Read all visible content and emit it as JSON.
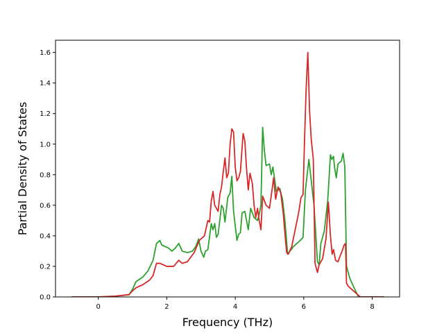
{
  "chart_data": {
    "type": "line",
    "title": "",
    "xlabel": "Frequency (THz)",
    "ylabel": "Partial Density of States",
    "xlim": [
      -1.25,
      8.8
    ],
    "ylim": [
      0,
      1.68
    ],
    "xticks": [
      0,
      2,
      4,
      6,
      8
    ],
    "yticks": [
      0.0,
      0.2,
      0.4,
      0.6,
      0.8,
      1.0,
      1.2,
      1.4,
      1.6
    ],
    "xtick_labels": [
      "0",
      "2",
      "4",
      "6",
      "8"
    ],
    "ytick_labels": [
      "0.0",
      "0.2",
      "0.4",
      "0.6",
      "0.8",
      "1.0",
      "1.2",
      "1.4",
      "1.6"
    ],
    "grid": false,
    "legend": "none",
    "series": [
      {
        "color": "#2ca02c",
        "points": [
          [
            -0.78,
            0.0
          ],
          [
            0.0,
            0.0
          ],
          [
            0.5,
            0.005
          ],
          [
            0.9,
            0.015
          ],
          [
            1.0,
            0.05
          ],
          [
            1.1,
            0.1
          ],
          [
            1.3,
            0.13
          ],
          [
            1.45,
            0.17
          ],
          [
            1.6,
            0.24
          ],
          [
            1.7,
            0.35
          ],
          [
            1.8,
            0.37
          ],
          [
            1.85,
            0.34
          ],
          [
            1.95,
            0.33
          ],
          [
            2.05,
            0.32
          ],
          [
            2.15,
            0.3
          ],
          [
            2.25,
            0.32
          ],
          [
            2.35,
            0.35
          ],
          [
            2.45,
            0.3
          ],
          [
            2.6,
            0.29
          ],
          [
            2.75,
            0.3
          ],
          [
            2.85,
            0.33
          ],
          [
            2.93,
            0.38
          ],
          [
            3.0,
            0.3
          ],
          [
            3.08,
            0.26
          ],
          [
            3.13,
            0.3
          ],
          [
            3.2,
            0.31
          ],
          [
            3.3,
            0.48
          ],
          [
            3.35,
            0.44
          ],
          [
            3.4,
            0.48
          ],
          [
            3.45,
            0.39
          ],
          [
            3.5,
            0.41
          ],
          [
            3.6,
            0.6
          ],
          [
            3.65,
            0.58
          ],
          [
            3.7,
            0.49
          ],
          [
            3.78,
            0.65
          ],
          [
            3.85,
            0.68
          ],
          [
            3.9,
            0.79
          ],
          [
            3.95,
            0.56
          ],
          [
            4.05,
            0.37
          ],
          [
            4.1,
            0.41
          ],
          [
            4.15,
            0.42
          ],
          [
            4.2,
            0.55
          ],
          [
            4.28,
            0.56
          ],
          [
            4.33,
            0.5
          ],
          [
            4.38,
            0.44
          ],
          [
            4.45,
            0.58
          ],
          [
            4.55,
            0.52
          ],
          [
            4.65,
            0.5
          ],
          [
            4.7,
            0.54
          ],
          [
            4.75,
            0.6
          ],
          [
            4.8,
            1.11
          ],
          [
            4.85,
            0.96
          ],
          [
            4.9,
            0.86
          ],
          [
            5.0,
            0.87
          ],
          [
            5.05,
            0.8
          ],
          [
            5.1,
            0.85
          ],
          [
            5.2,
            0.69
          ],
          [
            5.3,
            0.71
          ],
          [
            5.38,
            0.64
          ],
          [
            5.45,
            0.5
          ],
          [
            5.53,
            0.28
          ],
          [
            5.6,
            0.3
          ],
          [
            5.7,
            0.33
          ],
          [
            5.8,
            0.35
          ],
          [
            5.9,
            0.37
          ],
          [
            5.98,
            0.39
          ],
          [
            6.05,
            0.7
          ],
          [
            6.15,
            0.9
          ],
          [
            6.3,
            0.6
          ],
          [
            6.4,
            0.23
          ],
          [
            6.45,
            0.21
          ],
          [
            6.5,
            0.35
          ],
          [
            6.6,
            0.43
          ],
          [
            6.7,
            0.63
          ],
          [
            6.78,
            0.93
          ],
          [
            6.82,
            0.9
          ],
          [
            6.87,
            0.92
          ],
          [
            6.9,
            0.85
          ],
          [
            6.95,
            0.78
          ],
          [
            7.0,
            0.87
          ],
          [
            7.1,
            0.89
          ],
          [
            7.15,
            0.94
          ],
          [
            7.2,
            0.85
          ],
          [
            7.25,
            0.2
          ],
          [
            7.35,
            0.12
          ],
          [
            7.45,
            0.07
          ],
          [
            7.6,
            0.0
          ],
          [
            8.35,
            0.0
          ]
        ]
      },
      {
        "color": "#d62728",
        "points": [
          [
            -0.78,
            0.0
          ],
          [
            0.0,
            0.0
          ],
          [
            0.5,
            0.005
          ],
          [
            0.9,
            0.015
          ],
          [
            1.0,
            0.04
          ],
          [
            1.1,
            0.06
          ],
          [
            1.3,
            0.08
          ],
          [
            1.5,
            0.11
          ],
          [
            1.6,
            0.14
          ],
          [
            1.7,
            0.22
          ],
          [
            1.8,
            0.22
          ],
          [
            1.9,
            0.21
          ],
          [
            2.0,
            0.2
          ],
          [
            2.2,
            0.2
          ],
          [
            2.35,
            0.24
          ],
          [
            2.45,
            0.22
          ],
          [
            2.6,
            0.23
          ],
          [
            2.8,
            0.29
          ],
          [
            2.95,
            0.37
          ],
          [
            3.1,
            0.4
          ],
          [
            3.2,
            0.5
          ],
          [
            3.25,
            0.49
          ],
          [
            3.3,
            0.63
          ],
          [
            3.35,
            0.69
          ],
          [
            3.4,
            0.6
          ],
          [
            3.5,
            0.56
          ],
          [
            3.55,
            0.67
          ],
          [
            3.6,
            0.72
          ],
          [
            3.65,
            0.82
          ],
          [
            3.7,
            0.91
          ],
          [
            3.75,
            0.78
          ],
          [
            3.8,
            0.81
          ],
          [
            3.85,
            1.0
          ],
          [
            3.9,
            1.1
          ],
          [
            3.95,
            1.08
          ],
          [
            4.0,
            0.85
          ],
          [
            4.05,
            0.76
          ],
          [
            4.1,
            0.78
          ],
          [
            4.15,
            0.82
          ],
          [
            4.23,
            1.07
          ],
          [
            4.28,
            1.02
          ],
          [
            4.33,
            0.84
          ],
          [
            4.38,
            0.7
          ],
          [
            4.43,
            0.81
          ],
          [
            4.5,
            0.74
          ],
          [
            4.55,
            0.6
          ],
          [
            4.6,
            0.52
          ],
          [
            4.65,
            0.58
          ],
          [
            4.7,
            0.5
          ],
          [
            4.75,
            0.44
          ],
          [
            4.8,
            0.66
          ],
          [
            4.85,
            0.63
          ],
          [
            4.9,
            0.6
          ],
          [
            5.0,
            0.58
          ],
          [
            5.08,
            0.71
          ],
          [
            5.12,
            0.78
          ],
          [
            5.18,
            0.64
          ],
          [
            5.25,
            0.72
          ],
          [
            5.33,
            0.68
          ],
          [
            5.4,
            0.55
          ],
          [
            5.5,
            0.29
          ],
          [
            5.55,
            0.28
          ],
          [
            5.65,
            0.33
          ],
          [
            5.75,
            0.44
          ],
          [
            5.85,
            0.55
          ],
          [
            5.92,
            0.65
          ],
          [
            5.98,
            0.67
          ],
          [
            6.02,
            1.0
          ],
          [
            6.07,
            1.36
          ],
          [
            6.12,
            1.6
          ],
          [
            6.17,
            1.22
          ],
          [
            6.22,
            1.03
          ],
          [
            6.28,
            0.9
          ],
          [
            6.33,
            0.22
          ],
          [
            6.4,
            0.16
          ],
          [
            6.45,
            0.21
          ],
          [
            6.55,
            0.25
          ],
          [
            6.65,
            0.38
          ],
          [
            6.72,
            0.62
          ],
          [
            6.78,
            0.4
          ],
          [
            6.83,
            0.28
          ],
          [
            6.87,
            0.31
          ],
          [
            6.93,
            0.24
          ],
          [
            7.0,
            0.23
          ],
          [
            7.05,
            0.26
          ],
          [
            7.12,
            0.3
          ],
          [
            7.18,
            0.34
          ],
          [
            7.22,
            0.35
          ],
          [
            7.25,
            0.09
          ],
          [
            7.3,
            0.07
          ],
          [
            7.45,
            0.04
          ],
          [
            7.55,
            0.02
          ],
          [
            7.65,
            0.0
          ],
          [
            8.35,
            0.0
          ]
        ]
      }
    ]
  }
}
